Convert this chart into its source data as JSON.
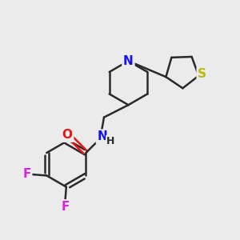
{
  "background_color": "#ebebeb",
  "bond_color": "#2a2a2a",
  "bond_width": 1.8,
  "atom_colors": {
    "N": "#1010ff",
    "O": "#ee1111",
    "F": "#dd22dd",
    "S": "#bbbb00",
    "C": "#2a2a2a"
  },
  "font_size": 11,
  "font_size_H": 9,
  "figsize": [
    3.0,
    3.0
  ],
  "dpi": 100
}
